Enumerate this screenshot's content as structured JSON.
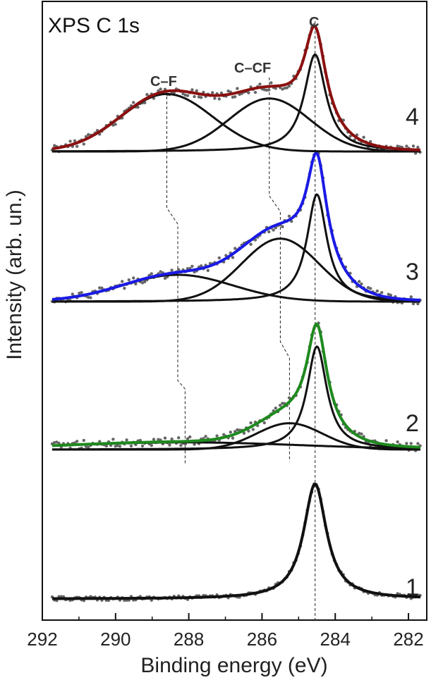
{
  "chart_data": {
    "type": "line",
    "title": "XPS C 1s",
    "xlabel": "Binding energy (eV)",
    "ylabel": "Intensity (arb. un.)",
    "xlim": [
      292,
      281.5
    ],
    "xticks": [
      292,
      290,
      288,
      286,
      284,
      282
    ],
    "xtick_labels": [
      "292",
      "290",
      "288",
      "286",
      "284",
      "282"
    ],
    "peak_labels": {
      "cf": "C–F",
      "ccf": "C–CF",
      "c": "C"
    },
    "curve_labels": [
      "1",
      "2",
      "3",
      "4"
    ],
    "spectra": [
      {
        "id": "1",
        "label": "1",
        "color": "#111111",
        "components": [
          {
            "center": 284.55,
            "height": 1.0,
            "width": 0.38,
            "type": "lorentzian"
          }
        ]
      },
      {
        "id": "2",
        "label": "2",
        "color": "#1e8a1e",
        "components": [
          {
            "center": 284.5,
            "height": 0.86,
            "width": 0.33,
            "type": "lorentzian"
          },
          {
            "center": 285.25,
            "height": 0.22,
            "width": 0.9,
            "type": "gaussian"
          },
          {
            "center": 288.1,
            "height": 0.06,
            "width": 3.2,
            "type": "gaussian"
          }
        ]
      },
      {
        "id": "3",
        "label": "3",
        "color": "#1a1ae6",
        "components": [
          {
            "center": 284.5,
            "height": 0.8,
            "width": 0.33,
            "type": "lorentzian"
          },
          {
            "center": 285.5,
            "height": 0.47,
            "width": 1.05,
            "type": "gaussian"
          },
          {
            "center": 288.3,
            "height": 0.2,
            "width": 1.5,
            "type": "gaussian"
          }
        ]
      },
      {
        "id": "4",
        "label": "4",
        "color": "#8b1010",
        "components": [
          {
            "center": 284.55,
            "height": 0.86,
            "width": 0.36,
            "type": "lorentzian"
          },
          {
            "center": 285.8,
            "height": 0.47,
            "width": 1.1,
            "type": "gaussian"
          },
          {
            "center": 288.6,
            "height": 0.51,
            "width": 1.25,
            "type": "gaussian"
          }
        ]
      }
    ],
    "reference_lines": [
      {
        "name": "c-line",
        "energies": [
          284.55
        ]
      },
      {
        "name": "cf-line",
        "energies": [
          288.6,
          288.3,
          288.1
        ]
      },
      {
        "name": "ccf-line",
        "energies": [
          285.8,
          285.5,
          285.25
        ]
      }
    ]
  }
}
